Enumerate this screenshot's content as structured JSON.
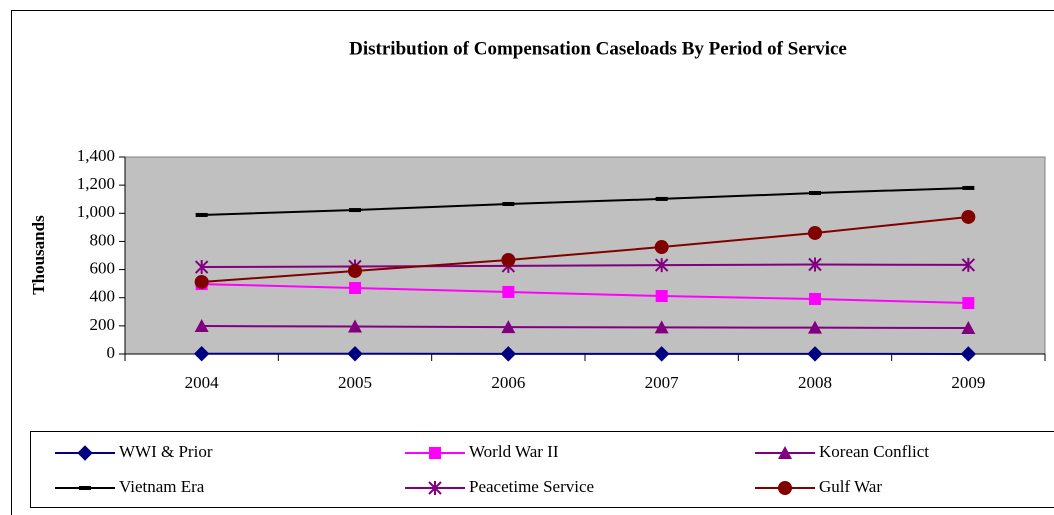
{
  "chart_data": {
    "type": "line",
    "title": "Distribution of Compensation Caseloads By Period of Service",
    "y_label": "Thousands",
    "categories": [
      "2004",
      "2005",
      "2006",
      "2007",
      "2008",
      "2009"
    ],
    "ylim": [
      0,
      1400
    ],
    "yticks": [
      0,
      200,
      400,
      600,
      800,
      {
        "value": 1000,
        "label": "1,000"
      },
      {
        "value": 1200,
        "label": "1,200"
      },
      {
        "value": 1400,
        "label": "1,400"
      }
    ],
    "grid": false,
    "plot_background": "#c0c0c0",
    "legend": "bottom",
    "series": [
      {
        "name": "WWI & Prior",
        "color": "#000080",
        "marker": "diamond",
        "values": [
          2,
          1.5,
          1,
          0.8,
          0.6,
          0.4
        ]
      },
      {
        "name": "World War II",
        "color": "#ff00ff",
        "marker": "square",
        "values": [
          497,
          469,
          441,
          412,
          391,
          362
        ]
      },
      {
        "name": "Korean Conflict",
        "color": "#800080",
        "marker": "triangle",
        "values": [
          199,
          195,
          191,
          189,
          187,
          185
        ]
      },
      {
        "name": "Vietnam Era",
        "color": "#000000",
        "marker": "dash",
        "values": [
          988,
          1023,
          1066,
          1102,
          1144,
          1180
        ]
      },
      {
        "name": "Peacetime Service",
        "color": "#800080",
        "marker": "star",
        "values": [
          618,
          622,
          626,
          632,
          636,
          633
        ]
      },
      {
        "name": "Gulf War",
        "color": "#800000",
        "marker": "circle",
        "values": [
          512,
          590,
          668,
          760,
          860,
          974
        ]
      }
    ]
  }
}
